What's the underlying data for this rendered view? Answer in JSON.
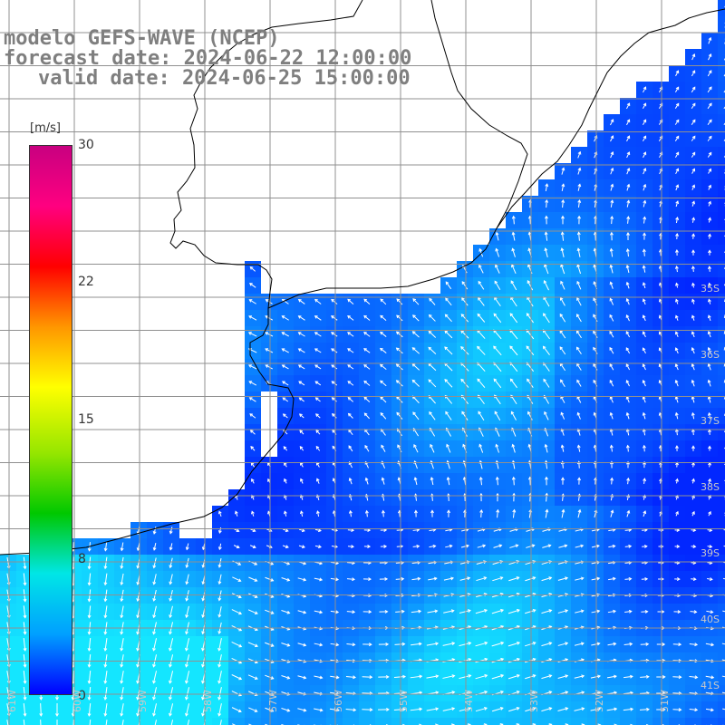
{
  "title": {
    "line1": "modelo GEFS-WAVE (NCEP)",
    "line2": "forecast date: 2024-06-22 12:00:00",
    "line3": "valid date: 2024-06-25 15:00:00"
  },
  "colorbar": {
    "unit": "[m/s]",
    "ticks": [
      "30",
      "22",
      "15",
      "8",
      "0"
    ],
    "range": [
      0,
      30
    ],
    "colors": [
      "#0000ff",
      "#00a0ff",
      "#00e6e6",
      "#00c800",
      "#96e600",
      "#ffff00",
      "#ff9600",
      "#ff0000",
      "#ff0080",
      "#c80080"
    ]
  },
  "latitude_labels": [
    "35S",
    "36S",
    "37S",
    "38S",
    "39S",
    "40S",
    "41S"
  ],
  "longitude_labels": [
    "61W",
    "60W",
    "59W",
    "58W",
    "57W",
    "56W",
    "55W",
    "54W",
    "53W",
    "52W",
    "51W"
  ],
  "colors": {
    "land": "#ffffff",
    "coast": "#000000",
    "grid": "#909090",
    "arrow": "#ffffff",
    "title": "#7f7f7f"
  }
}
